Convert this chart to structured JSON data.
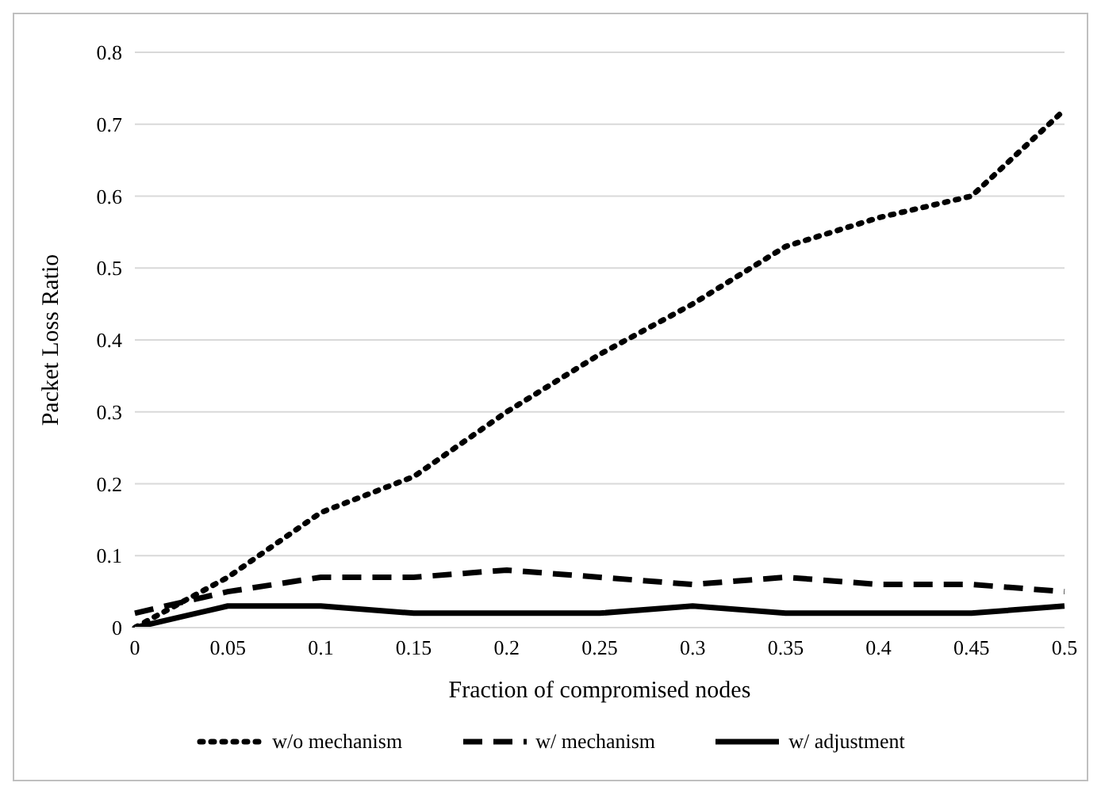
{
  "chart_data": {
    "type": "line",
    "xlabel": "Fraction of compromised nodes",
    "ylabel": "Packet Loss Ratio",
    "categories": [
      "0",
      "0.05",
      "0.1",
      "0.15",
      "0.2",
      "0.25",
      "0.3",
      "0.35",
      "0.4",
      "0.45",
      "0.5"
    ],
    "series": [
      {
        "name": "w/o mechanism",
        "color": "#000000",
        "line_style": "dotted",
        "values": [
          0,
          0.07,
          0.16,
          0.21,
          0.3,
          0.38,
          0.45,
          0.53,
          0.57,
          0.6,
          0.72
        ]
      },
      {
        "name": "w/ mechanism",
        "color": "#000000",
        "line_style": "dashed",
        "values": [
          0.02,
          0.05,
          0.07,
          0.07,
          0.08,
          0.07,
          0.06,
          0.07,
          0.06,
          0.06,
          0.05
        ]
      },
      {
        "name": "w/ adjustment",
        "color": "#000000",
        "line_style": "solid",
        "values": [
          0,
          0.03,
          0.03,
          0.02,
          0.02,
          0.02,
          0.03,
          0.02,
          0.02,
          0.02,
          0.03
        ]
      }
    ],
    "ylim": [
      0,
      0.8
    ],
    "yticks": [
      0,
      0.1,
      0.2,
      0.3,
      0.4,
      0.5,
      0.6,
      0.7,
      0.8
    ],
    "grid": "y",
    "legend": "bottom",
    "marker": "none"
  }
}
